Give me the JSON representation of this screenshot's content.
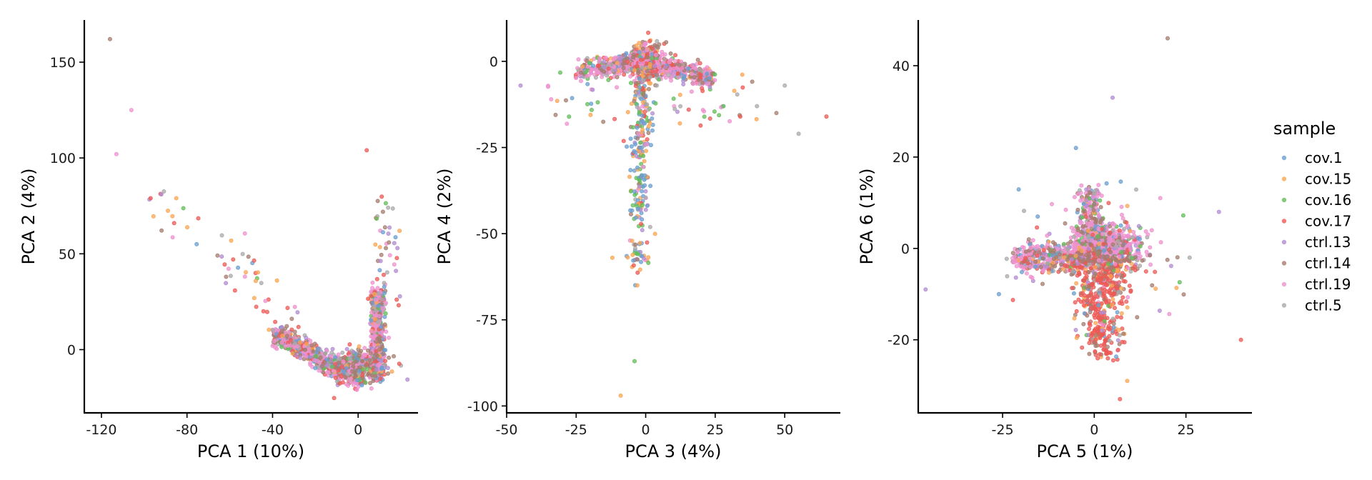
{
  "chart_data": [
    {
      "type": "scatter",
      "xlabel": "PCA 1 (10%)",
      "ylabel": "PCA 2 (4%)",
      "xlim": [
        -128,
        28
      ],
      "ylim": [
        -33,
        172
      ],
      "xticks": [
        -120,
        -80,
        -40,
        0
      ],
      "xtick_labels": [
        "-120",
        "-80",
        "-40",
        "0"
      ],
      "yticks": [
        0,
        50,
        100,
        150
      ],
      "ytick_labels": [
        "0",
        "50",
        "100",
        "150"
      ],
      "grid": false,
      "shape": "v"
    },
    {
      "type": "scatter",
      "xlabel": "PCA 3 (4%)",
      "ylabel": "PCA 4 (2%)",
      "xlim": [
        -50,
        70
      ],
      "ylim": [
        -102,
        12
      ],
      "xticks": [
        -50,
        -25,
        0,
        25,
        50
      ],
      "xtick_labels": [
        "-50",
        "-25",
        "0",
        "25",
        "50"
      ],
      "yticks": [
        -100,
        -75,
        -50,
        -25,
        0
      ],
      "ytick_labels": [
        "-100",
        "-75",
        "-50",
        "-25",
        "0"
      ],
      "grid": false,
      "shape": "t"
    },
    {
      "type": "scatter",
      "xlabel": "PCA 5 (1%)",
      "ylabel": "PCA 6 (1%)",
      "xlim": [
        -48,
        43
      ],
      "ylim": [
        -36,
        50
      ],
      "xticks": [
        -25,
        0,
        25
      ],
      "xtick_labels": [
        "-25",
        "0",
        "25"
      ],
      "yticks": [
        -20,
        0,
        20,
        40
      ],
      "ytick_labels": [
        "-20",
        "0",
        "20",
        "40"
      ],
      "grid": false,
      "shape": "cross"
    }
  ],
  "legend": {
    "title": "sample",
    "placement": "right",
    "items": [
      {
        "label": "cov.1",
        "color": "#6A9FD0"
      },
      {
        "label": "cov.15",
        "color": "#F9A553"
      },
      {
        "label": "cov.16",
        "color": "#62BE5A"
      },
      {
        "label": "cov.17",
        "color": "#EC5A55"
      },
      {
        "label": "ctrl.13",
        "color": "#B28CD1"
      },
      {
        "label": "ctrl.14",
        "color": "#A67C6F"
      },
      {
        "label": "ctrl.19",
        "color": "#EE92CF"
      },
      {
        "label": "ctrl.5",
        "color": "#A9A9A9"
      }
    ]
  }
}
